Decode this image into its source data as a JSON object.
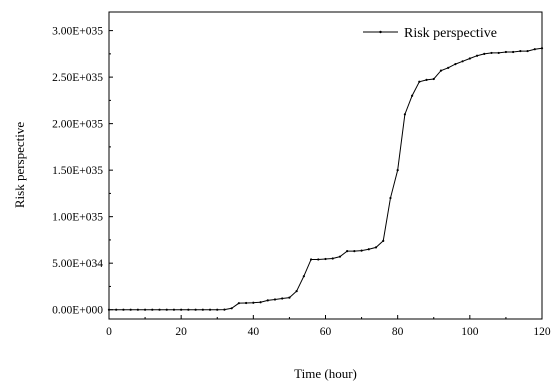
{
  "chart_data": {
    "type": "line",
    "title": "",
    "xlabel": "Time (hour)",
    "ylabel": "Risk perspective",
    "xlim": [
      0,
      120
    ],
    "ylim": [
      -1e+34,
      3.2e+35
    ],
    "x_ticks": [
      0,
      20,
      40,
      60,
      80,
      100,
      120
    ],
    "x_tick_labels": [
      "0",
      "20",
      "40",
      "60",
      "80",
      "100",
      "120"
    ],
    "y_ticks": [
      0,
      5e+34,
      1e+35,
      1.5e+35,
      2e+35,
      2.5e+35,
      3e+35
    ],
    "y_tick_labels": [
      "0.00E+000",
      "5.00E+034",
      "1.00E+035",
      "1.50E+035",
      "2.00E+035",
      "2.50E+035",
      "3.00E+035"
    ],
    "grid": false,
    "legend_position": "top-right",
    "series": [
      {
        "name": "Risk perspective",
        "color": "#000000",
        "x": [
          0,
          2,
          4,
          6,
          8,
          10,
          12,
          14,
          16,
          18,
          20,
          22,
          24,
          26,
          28,
          30,
          32,
          34,
          36,
          38,
          40,
          42,
          44,
          46,
          48,
          50,
          52,
          54,
          56,
          58,
          60,
          62,
          64,
          66,
          68,
          70,
          72,
          74,
          76,
          78,
          80,
          82,
          84,
          86,
          88,
          90,
          92,
          94,
          96,
          98,
          100,
          102,
          104,
          106,
          108,
          110,
          112,
          114,
          116,
          118,
          120
        ],
        "y": [
          0,
          0,
          0,
          0,
          0,
          0,
          0,
          0,
          0,
          0,
          0,
          0,
          0,
          0,
          0,
          0,
          1e+32,
          1.5e+33,
          7e+33,
          7.2e+33,
          7.5e+33,
          8e+33,
          1e+34,
          1.1e+34,
          1.2e+34,
          1.3e+34,
          2e+34,
          3.6e+34,
          5.4e+34,
          5.4e+34,
          5.45e+34,
          5.5e+34,
          5.7e+34,
          6.3e+34,
          6.3e+34,
          6.35e+34,
          6.5e+34,
          6.7e+34,
          7.4e+34,
          1.2e+35,
          1.5e+35,
          2.1e+35,
          2.3e+35,
          2.45e+35,
          2.47e+35,
          2.48e+35,
          2.57e+35,
          2.6e+35,
          2.64e+35,
          2.67e+35,
          2.7e+35,
          2.73e+35,
          2.75e+35,
          2.76e+35,
          2.76e+35,
          2.77e+35,
          2.77e+35,
          2.78e+35,
          2.78e+35,
          2.8e+35,
          2.81e+35
        ]
      }
    ]
  }
}
